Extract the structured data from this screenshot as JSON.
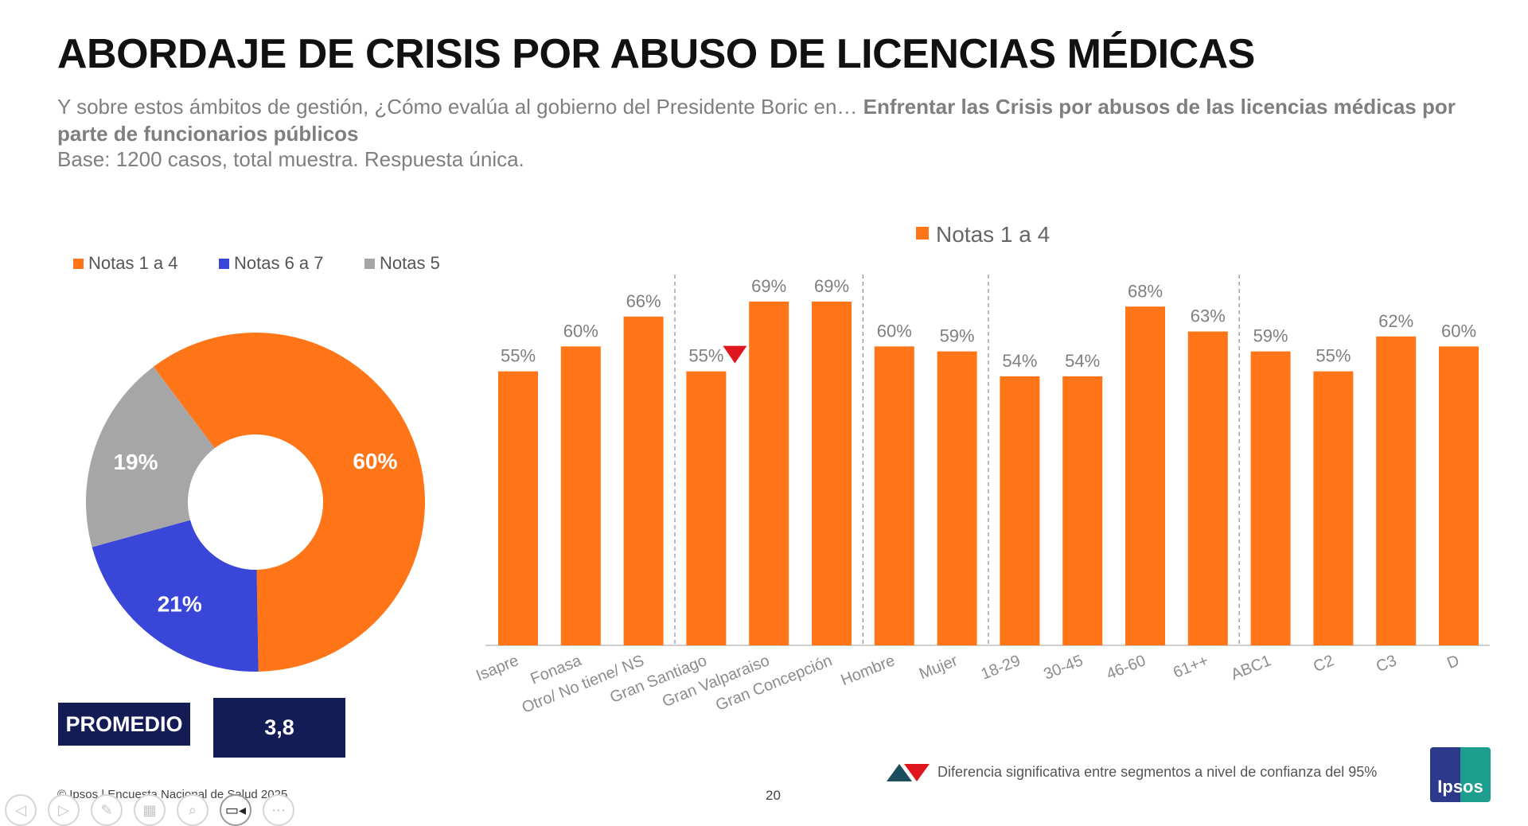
{
  "title": "ABORDAJE DE CRISIS POR ABUSO DE LICENCIAS MÉDICAS",
  "question": {
    "lead": "Y sobre estos ámbitos de gestión, ¿Cómo evalúa al gobierno del Presidente Boric en… ",
    "bold": "Enfrentar las Crisis por abusos de las licencias médicas por parte de funcionarios públicos"
  },
  "base": "Base: 1200 casos, total muestra. Respuesta única.",
  "colors": {
    "orange": "#ff7518",
    "blue": "#3a46d8",
    "gray": "#a6a6a6",
    "navy": "#141c56",
    "red": "#e0161f",
    "teal": "#1b4d5c"
  },
  "chart_data": [
    {
      "type": "pie",
      "variant": "donut",
      "legend": [
        {
          "label": "Notas 1 a 4",
          "color": "#ff7518"
        },
        {
          "label": "Notas 6 a 7",
          "color": "#3a46d8"
        },
        {
          "label": "Notas 5",
          "color": "#a6a6a6"
        }
      ],
      "slices": [
        {
          "name": "Notas 1 a 4",
          "value": 60,
          "label": "60%",
          "color": "#ff7518"
        },
        {
          "name": "Notas 6 a 7",
          "value": 21,
          "label": "21%",
          "color": "#3a46d8"
        },
        {
          "name": "Notas 5",
          "value": 19,
          "label": "19%",
          "color": "#a6a6a6"
        }
      ],
      "legend_position": "top"
    },
    {
      "type": "bar",
      "title": "",
      "legend": [
        {
          "label": "Notas 1 a 4",
          "color": "#ff7518"
        }
      ],
      "legend_position": "top",
      "categories": [
        "Isapre",
        "Fonasa",
        "Otro/ No tiene/ NS",
        "Gran Santiago",
        "Gran Valparaiso",
        "Gran Concepción",
        "Hombre",
        "Mujer",
        "18-29",
        "30-45",
        "46-60",
        "61++",
        "ABC1",
        "C2",
        "C3",
        "D"
      ],
      "groups": [
        [
          "Isapre",
          "Fonasa",
          "Otro/ No tiene/ NS"
        ],
        [
          "Gran Santiago",
          "Gran Valparaiso",
          "Gran Concepción"
        ],
        [
          "Hombre",
          "Mujer"
        ],
        [
          "18-29",
          "30-45",
          "46-60",
          "61++"
        ],
        [
          "ABC1",
          "C2",
          "C3",
          "D"
        ]
      ],
      "series": [
        {
          "name": "Notas 1 a 4",
          "values": [
            55,
            60,
            66,
            55,
            69,
            69,
            60,
            59,
            54,
            54,
            68,
            63,
            59,
            55,
            62,
            60
          ]
        }
      ],
      "data_labels": [
        "55%",
        "60%",
        "66%",
        "55%",
        "69%",
        "69%",
        "60%",
        "59%",
        "54%",
        "54%",
        "68%",
        "63%",
        "59%",
        "55%",
        "62%",
        "60%"
      ],
      "significance_markers": [
        {
          "category": "Gran Santiago",
          "direction": "down"
        }
      ],
      "ylim": [
        0,
        100
      ],
      "grid": false
    }
  ],
  "promedio": {
    "label": "PROMEDIO",
    "value": "3,8"
  },
  "footer": {
    "source": "© Ipsos | Encuesta Nacional de Salud 2025",
    "page": "20",
    "significance_note": "Diferencia significativa entre segmentos a nivel de confianza del 95%",
    "logo": "Ipsos"
  },
  "toolbar": [
    {
      "name": "previous-slide-button",
      "icon": "◁",
      "active": false
    },
    {
      "name": "next-slide-button",
      "icon": "▷",
      "active": false
    },
    {
      "name": "pen-tool-button",
      "icon": "✎",
      "active": false
    },
    {
      "name": "slides-overview-button",
      "icon": "▦",
      "active": false
    },
    {
      "name": "zoom-button",
      "icon": "⌕",
      "active": false
    },
    {
      "name": "camera-button",
      "icon": "▭◂",
      "active": true
    },
    {
      "name": "more-options-button",
      "icon": "⋯",
      "active": false
    }
  ]
}
